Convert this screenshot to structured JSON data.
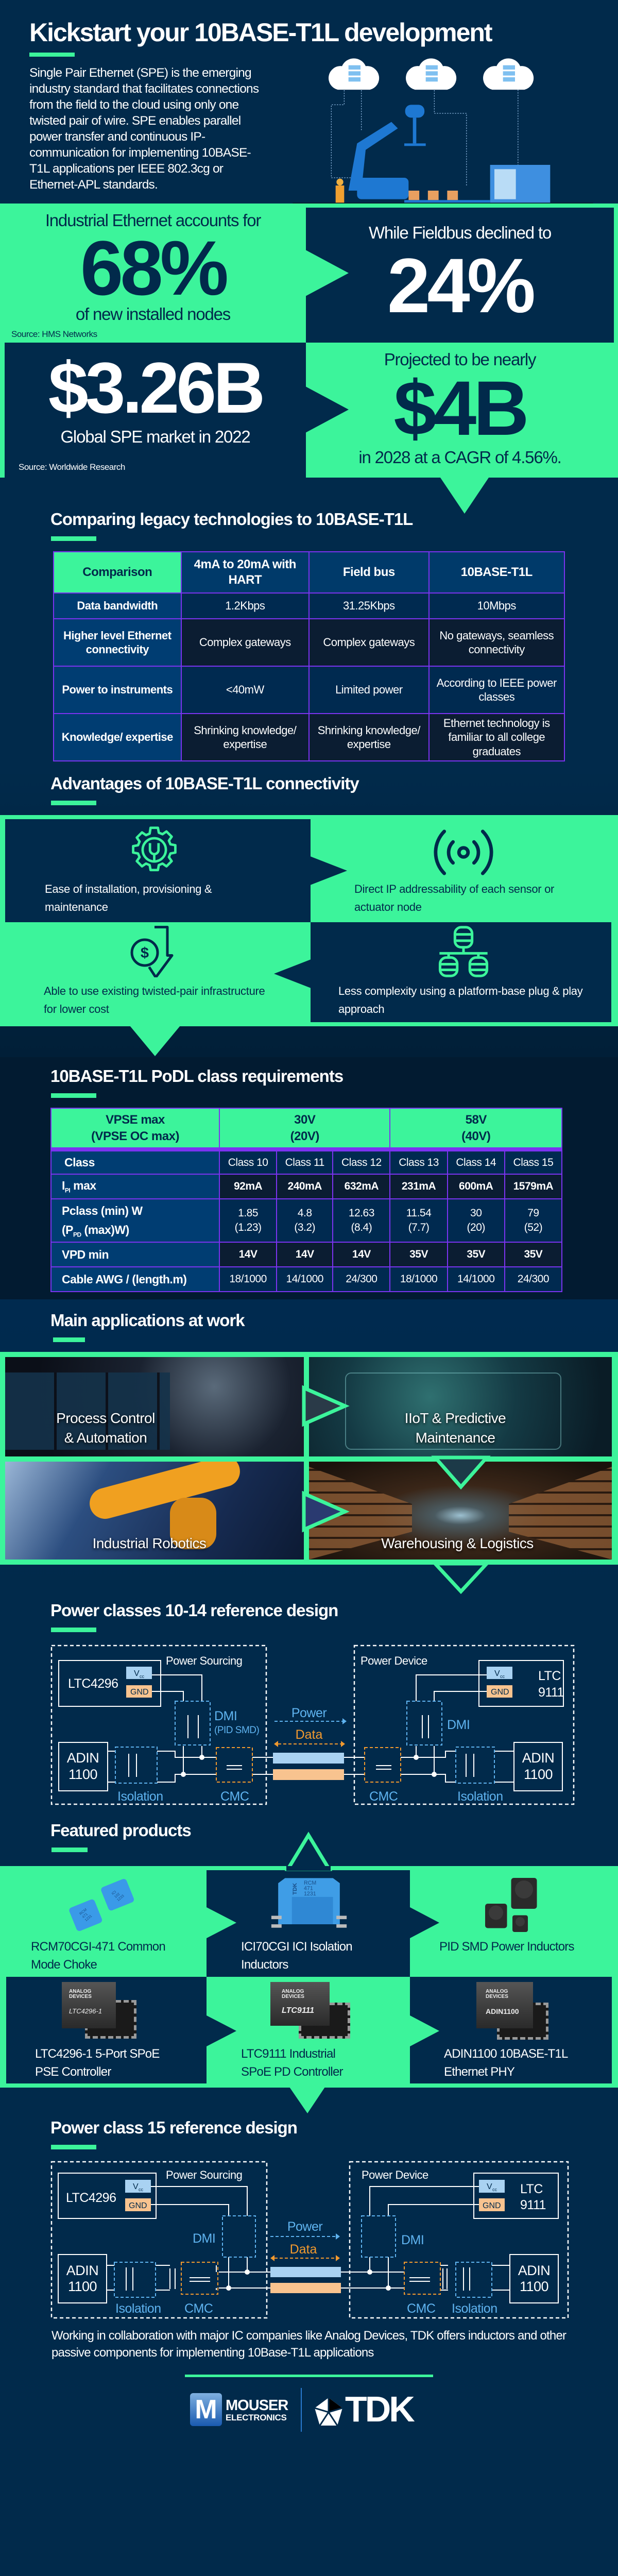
{
  "colors": {
    "navy": "#012a4b",
    "green": "#3cf49b",
    "purple": "#7b33f0",
    "blue_label": "#5fb3ef",
    "orange_label": "#f39a2e"
  },
  "header": {
    "title": "Kickstart your 10BASE-T1L development",
    "intro": "Single Pair Ethernet (SPE) is the emerging industry standard that facilitates connections from the field to the cloud using only one twisted pair of wire. SPE enables parallel power transfer and continuous IP-communication for implementing 10BASE-T1L applications per IEEE 802.3cg or Ethernet-APL standards."
  },
  "stats": {
    "ethernet_lead": "Industrial Ethernet accounts for",
    "ethernet_value": "68%",
    "ethernet_tail": "of new installed nodes",
    "ethernet_source": "Source: HMS Networks",
    "fieldbus_lead": "While Fieldbus declined to",
    "fieldbus_value": "24%",
    "market_value": "$3.26B",
    "market_tail": "Global SPE market in 2022",
    "market_source": "Source: Worldwide Research",
    "projection_lead": "Projected to be nearly",
    "projection_value": "$4B",
    "projection_tail": "in 2028 at a CAGR of 4.56%."
  },
  "comparison": {
    "title": "Comparing legacy technologies to 10BASE-T1L",
    "headers": [
      "Comparison",
      "4mA to 20mA with HART",
      "Field bus",
      "10BASE-T1L"
    ],
    "rows": [
      {
        "label": "Data bandwidth",
        "cells": [
          "1.2Kbps",
          "31.25Kbps",
          "10Mbps"
        ]
      },
      {
        "label": "Higher level Ethernet connectivity",
        "cells": [
          "Complex gateways",
          "Complex gateways",
          "No gateways, seamless connectivity"
        ]
      },
      {
        "label": "Power to instruments",
        "cells": [
          "<40mW",
          "Limited power",
          "According to IEEE power classes"
        ]
      },
      {
        "label": "Knowledge/ expertise",
        "cells": [
          "Shrinking knowledge/ expertise",
          "Shrinking knowledge/ expertise",
          "Ethernet technology is familiar to all college graduates"
        ]
      }
    ]
  },
  "advantages": {
    "title": "Advantages of 10BASE-T1L connectivity",
    "items": [
      {
        "icon": "gear-wrench-icon",
        "text": "Ease of installation, provisioning & maintenance"
      },
      {
        "icon": "broadcast-icon",
        "text": "Direct IP addressability of each sensor or actuator node"
      },
      {
        "icon": "dollar-down-arrow-icon",
        "text": "Able to use existing twisted-pair infrastructure for lower cost"
      },
      {
        "icon": "database-network-icon",
        "text": "Less complexity using a platform-base plug & play approach"
      }
    ]
  },
  "podl": {
    "title": "10BASE-T1L PoDL class requirements",
    "header": {
      "label_line1": "VPSE max",
      "label_line2": "(VPSE OC max)",
      "group1_line1": "30V",
      "group1_line2": "(20V)",
      "group2_line1": "58V",
      "group2_line2": "(40V)"
    },
    "class_label": "Class",
    "classes": [
      "Class 10",
      "Class 11",
      "Class 12",
      "Class 13",
      "Class 14",
      "Class 15"
    ],
    "ipi_label": {
      "main": "I",
      "sub": "PI",
      "tail": " max"
    },
    "ipi": [
      "92mA",
      "240mA",
      "632mA",
      "231mA",
      "600mA",
      "1579mA"
    ],
    "pclass_label": {
      "line1": "Pclass (min) W",
      "line2_pre": "(P",
      "line2_sub": "PD",
      "line2_tail": " (max)W)"
    },
    "pclass": [
      {
        "min": "1.85",
        "max": "(1.23)"
      },
      {
        "min": "4.8",
        "max": "(3.2)"
      },
      {
        "min": "12.63",
        "max": "(8.4)"
      },
      {
        "min": "11.54",
        "max": "(7.7)"
      },
      {
        "min": "30",
        "max": "(20)"
      },
      {
        "min": "79",
        "max": "(52)"
      }
    ],
    "vpd_label": "VPD min",
    "vpd": [
      "14V",
      "14V",
      "14V",
      "35V",
      "35V",
      "35V"
    ],
    "cable_label": "Cable AWG / (length.m)",
    "cable": [
      "18/1000",
      "14/1000",
      "24/300",
      "18/1000",
      "14/1000",
      "24/300"
    ]
  },
  "applications": {
    "title": "Main applications at work",
    "items": [
      {
        "line1": "Process Control",
        "line2": "& Automation"
      },
      {
        "line1": "IIoT & Predictive",
        "line2": "Maintenance"
      },
      {
        "line1": "Industrial Robotics",
        "line2": ""
      },
      {
        "line1": "Warehousing & Logistics",
        "line2": ""
      }
    ]
  },
  "diagram1": {
    "title": "Power classes 10-14 reference design",
    "power_sourcing": "Power Sourcing",
    "power_device": "Power Device",
    "pse_chip": "LTC4296",
    "pd_chip_line1": "LTC",
    "pd_chip_line2": "9111",
    "vcc": "V",
    "vcc_sub": "cc",
    "gnd": "GND",
    "phy_line1": "ADIN",
    "phy_line2": "1100",
    "dmi": "DMI",
    "dmi_note": "(PID SMD)",
    "isolation": "Isolation",
    "cmc": "CMC",
    "power": "Power",
    "data": "Data"
  },
  "products": {
    "title": "Featured products",
    "items": [
      {
        "line1": "RCM70CGI-471 Common",
        "line2": "Mode Choke"
      },
      {
        "line1": "ICI70CGI ICI Isolation",
        "line2": "Inductors"
      },
      {
        "line1": "PID SMD Power Inductors",
        "line2": ""
      },
      {
        "line1": "LTC4296-1 5-Port SPoE",
        "line2": "PSE Controller"
      },
      {
        "line1": "LTC9111 Industrial",
        "line2": "SPoE PD Controller"
      },
      {
        "line1": "ADIN1100 10BASE-T1L",
        "line2": "Ethernet PHY"
      }
    ],
    "markings": {
      "tdk": "TDK",
      "rcm": "RCM",
      "rcm_code": "471",
      "rcm_lot": "1231",
      "ici": "ICI",
      "ici_code": "102",
      "ici_lot": "1233",
      "adi_line1": "ANALOG",
      "adi_line2": "DEVICES",
      "chip1": "LTC4296-1",
      "chip2": "LTC9111",
      "chip3": "ADIN1100"
    }
  },
  "diagram2": {
    "title": "Power class 15 reference design",
    "power_sourcing": "Power Sourcing",
    "power_device": "Power Device",
    "pse_chip": "LTC4296",
    "pd_chip_line1": "LTC",
    "pd_chip_line2": "9111",
    "vcc": "V",
    "vcc_sub": "cc",
    "gnd": "GND",
    "phy_line1": "ADIN",
    "phy_line2": "1100",
    "dmi": "DMI",
    "isolation": "Isolation",
    "cmc": "CMC",
    "power": "Power",
    "data": "Data"
  },
  "footer": {
    "text": "Working in collaboration with major IC companies like Analog Devices, TDK offers inductors and other passive components for implementing 10Base-T1L applications",
    "mouser_mark": "M",
    "mouser_name": "MOUSER",
    "mouser_sub": "ELECTRONICS",
    "tdk": "TDK"
  }
}
